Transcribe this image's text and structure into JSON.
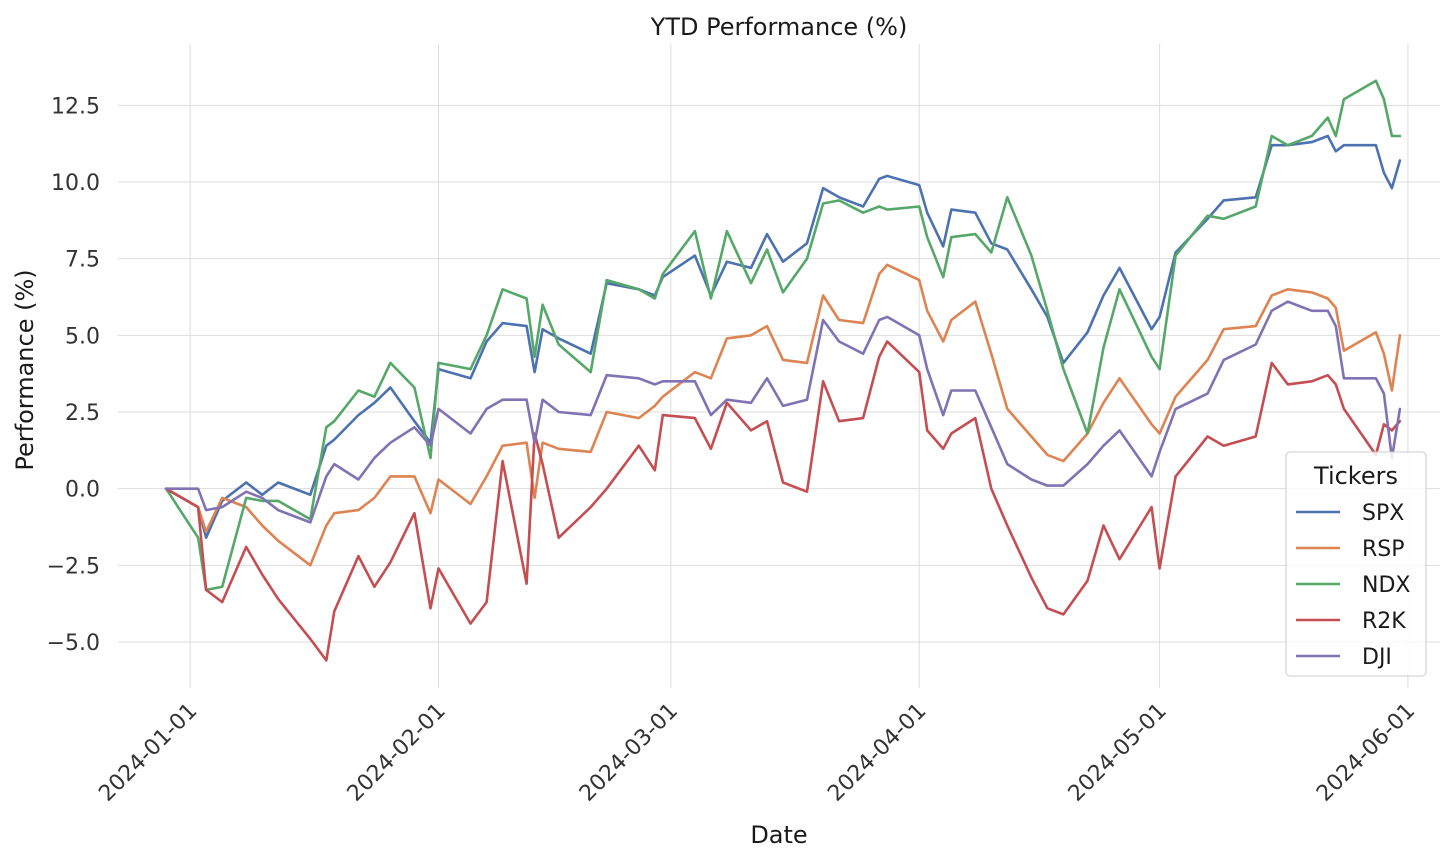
{
  "chart_data": {
    "type": "line",
    "title": "YTD Performance (%)",
    "xlabel": "Date",
    "ylabel": "Performance (%)",
    "x_ticks": [
      "2024-01-01",
      "2024-02-01",
      "2024-03-01",
      "2024-04-01",
      "2024-05-01",
      "2024-06-01"
    ],
    "y_ticks": [
      "−5.0",
      "−2.5",
      "0.0",
      "2.5",
      "5.0",
      "7.5",
      "10.0",
      "12.5"
    ],
    "y_tick_values": [
      -5,
      -2.5,
      0,
      2.5,
      5,
      7.5,
      10,
      12.5
    ],
    "xlim": [
      "2023-12-23",
      "2024-06-05"
    ],
    "ylim": [
      -6.5,
      14.5
    ],
    "grid": true,
    "legend": {
      "title": "Tickers",
      "placement": "lower-right"
    },
    "x": [
      "2023-12-29",
      "2024-01-02",
      "2024-01-03",
      "2024-01-05",
      "2024-01-08",
      "2024-01-10",
      "2024-01-12",
      "2024-01-16",
      "2024-01-18",
      "2024-01-19",
      "2024-01-22",
      "2024-01-24",
      "2024-01-26",
      "2024-01-29",
      "2024-01-31",
      "2024-02-01",
      "2024-02-05",
      "2024-02-07",
      "2024-02-09",
      "2024-02-12",
      "2024-02-13",
      "2024-02-14",
      "2024-02-16",
      "2024-02-20",
      "2024-02-22",
      "2024-02-26",
      "2024-02-28",
      "2024-02-29",
      "2024-03-04",
      "2024-03-06",
      "2024-03-08",
      "2024-03-11",
      "2024-03-13",
      "2024-03-15",
      "2024-03-18",
      "2024-03-20",
      "2024-03-22",
      "2024-03-25",
      "2024-03-27",
      "2024-03-28",
      "2024-04-01",
      "2024-04-02",
      "2024-04-04",
      "2024-04-05",
      "2024-04-08",
      "2024-04-10",
      "2024-04-12",
      "2024-04-15",
      "2024-04-17",
      "2024-04-19",
      "2024-04-22",
      "2024-04-24",
      "2024-04-26",
      "2024-04-30",
      "2024-05-01",
      "2024-05-03",
      "2024-05-07",
      "2024-05-09",
      "2024-05-13",
      "2024-05-15",
      "2024-05-17",
      "2024-05-20",
      "2024-05-22",
      "2024-05-23",
      "2024-05-24",
      "2024-05-28",
      "2024-05-29",
      "2024-05-30",
      "2024-05-31"
    ],
    "series": [
      {
        "name": "SPX",
        "color": "#4c72b0",
        "values": [
          0.0,
          -0.6,
          -1.6,
          -0.4,
          0.2,
          -0.2,
          0.2,
          -0.2,
          1.4,
          1.6,
          2.4,
          2.8,
          3.3,
          2.2,
          1.5,
          3.9,
          3.6,
          4.8,
          5.4,
          5.3,
          3.8,
          5.2,
          4.9,
          4.4,
          6.7,
          6.5,
          6.3,
          6.9,
          7.6,
          6.3,
          7.4,
          7.2,
          8.3,
          7.4,
          8.0,
          9.8,
          9.5,
          9.2,
          10.1,
          10.2,
          9.9,
          9.0,
          7.9,
          9.1,
          9.0,
          8.0,
          7.8,
          6.5,
          5.6,
          4.1,
          5.1,
          6.3,
          7.2,
          5.2,
          5.6,
          7.7,
          8.8,
          9.4,
          9.5,
          11.2,
          11.2,
          11.3,
          11.5,
          11.0,
          11.2,
          11.2,
          10.3,
          9.8,
          10.7
        ]
      },
      {
        "name": "RSP",
        "color": "#dd8452",
        "values": [
          0.0,
          -0.6,
          -1.4,
          -0.3,
          -0.6,
          -1.2,
          -1.7,
          -2.5,
          -1.2,
          -0.8,
          -0.7,
          -0.3,
          0.4,
          0.4,
          -0.8,
          0.3,
          -0.5,
          0.4,
          1.4,
          1.5,
          -0.3,
          1.5,
          1.3,
          1.2,
          2.5,
          2.3,
          2.7,
          3.0,
          3.8,
          3.6,
          4.9,
          5.0,
          5.3,
          4.2,
          4.1,
          6.3,
          5.5,
          5.4,
          7.0,
          7.3,
          6.8,
          5.8,
          4.8,
          5.5,
          6.1,
          4.4,
          2.6,
          1.7,
          1.1,
          0.9,
          1.8,
          2.8,
          3.6,
          2.1,
          1.8,
          3.0,
          4.2,
          5.2,
          5.3,
          6.3,
          6.5,
          6.4,
          6.2,
          5.9,
          4.5,
          5.1,
          4.4,
          3.2,
          5.0
        ]
      },
      {
        "name": "NDX",
        "color": "#55a868",
        "values": [
          0.0,
          -1.6,
          -3.3,
          -3.2,
          -0.3,
          -0.4,
          -0.4,
          -1.0,
          2.0,
          2.2,
          3.2,
          3.0,
          4.1,
          3.3,
          1.0,
          4.1,
          3.9,
          5.0,
          6.5,
          6.2,
          4.3,
          6.0,
          4.7,
          3.8,
          6.8,
          6.5,
          6.2,
          7.0,
          8.4,
          6.2,
          8.4,
          6.7,
          7.8,
          6.4,
          7.5,
          9.3,
          9.4,
          9.0,
          9.2,
          9.1,
          9.2,
          8.2,
          6.9,
          8.2,
          8.3,
          7.7,
          9.5,
          7.6,
          5.8,
          3.9,
          1.8,
          4.6,
          6.5,
          4.3,
          3.9,
          7.6,
          8.9,
          8.8,
          9.2,
          11.5,
          11.2,
          11.5,
          12.1,
          11.5,
          12.7,
          13.3,
          12.7,
          11.5,
          11.5
        ]
      },
      {
        "name": "R2K",
        "color": "#c44e52",
        "values": [
          0.0,
          -0.6,
          -3.3,
          -3.7,
          -1.9,
          -2.8,
          -3.6,
          -4.9,
          -5.6,
          -4.0,
          -2.2,
          -3.2,
          -2.4,
          -0.8,
          -3.9,
          -2.6,
          -4.4,
          -3.7,
          0.9,
          -3.1,
          1.8,
          0.8,
          -1.6,
          -0.6,
          0.0,
          1.4,
          0.6,
          2.4,
          2.3,
          1.3,
          2.8,
          1.9,
          2.2,
          0.2,
          -0.1,
          3.5,
          2.2,
          2.3,
          4.3,
          4.8,
          3.8,
          1.9,
          1.3,
          1.8,
          2.3,
          0.0,
          -1.2,
          -2.9,
          -3.9,
          -4.1,
          -3.0,
          -1.2,
          -2.3,
          -0.6,
          -2.6,
          0.4,
          1.7,
          1.4,
          1.7,
          4.1,
          3.4,
          3.5,
          3.7,
          3.4,
          2.6,
          1.1,
          2.1,
          1.9,
          2.2
        ]
      },
      {
        "name": "DJI",
        "color": "#8172b3",
        "values": [
          0.0,
          0.0,
          -0.7,
          -0.6,
          -0.1,
          -0.3,
          -0.7,
          -1.1,
          0.4,
          0.8,
          0.3,
          1.0,
          1.5,
          2.0,
          1.4,
          2.6,
          1.8,
          2.6,
          2.9,
          2.9,
          1.5,
          2.9,
          2.5,
          2.4,
          3.7,
          3.6,
          3.4,
          3.5,
          3.5,
          2.4,
          2.9,
          2.8,
          3.6,
          2.7,
          2.9,
          5.5,
          4.8,
          4.4,
          5.5,
          5.6,
          5.0,
          3.9,
          2.4,
          3.2,
          3.2,
          2.0,
          0.8,
          0.3,
          0.1,
          0.1,
          0.8,
          1.4,
          1.9,
          0.4,
          1.2,
          2.6,
          3.1,
          4.2,
          4.7,
          5.8,
          6.1,
          5.8,
          5.8,
          5.3,
          3.6,
          3.6,
          3.1,
          1.0,
          2.6
        ]
      }
    ]
  }
}
